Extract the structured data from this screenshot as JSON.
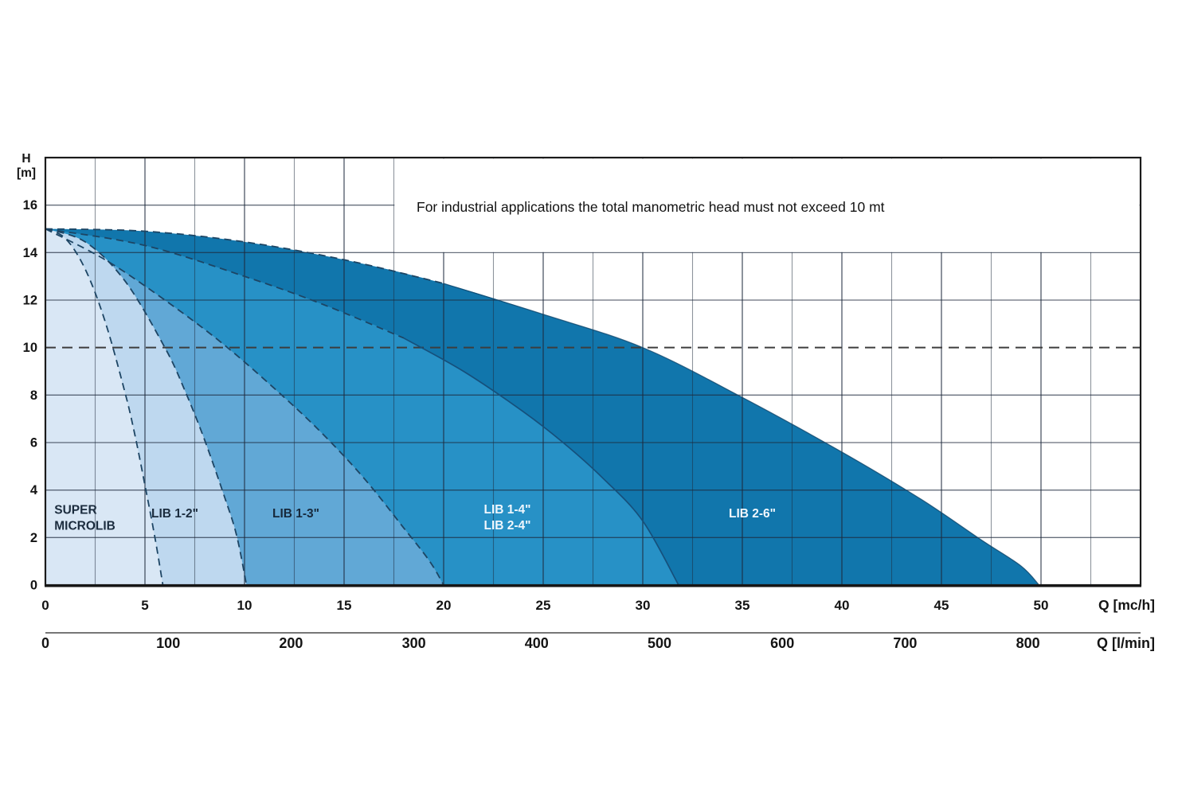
{
  "chart_data": {
    "type": "area",
    "title": "",
    "note": "For industrial applications the total manometric head must not exceed 10 mt",
    "y_axis": {
      "label_lines": [
        "H",
        "[m]"
      ],
      "ticks": [
        16,
        14,
        12,
        10,
        8,
        6,
        4,
        2,
        0
      ],
      "min": 0,
      "max": 18,
      "grid_step": 2
    },
    "x_axis": {
      "label": "Q [mc/h]",
      "ticks": [
        0,
        5,
        10,
        15,
        20,
        25,
        30,
        35,
        40,
        45,
        50
      ],
      "min": 0,
      "max": 55,
      "grid_step": 2.5
    },
    "x_axis_secondary": {
      "label": "Q [l/min]",
      "ticks": [
        0,
        100,
        200,
        300,
        400,
        500,
        600,
        700,
        800
      ]
    },
    "limit_line": {
      "h": 10,
      "style": "dashed"
    },
    "series": [
      {
        "name": "SUPER MICROLIB",
        "label_lines": [
          "SUPER",
          "MICROLIB"
        ],
        "fill": "#d9e7f5",
        "label_color": "#1b2c3e",
        "label_anchor": "start",
        "label_q": 0.45,
        "label_h": 3.0,
        "h_at_q0": 15,
        "q_max": 5.9,
        "points": [
          [
            0,
            15
          ],
          [
            1,
            14.6
          ],
          [
            2,
            13.3
          ],
          [
            3,
            11.1
          ],
          [
            4,
            8.1
          ],
          [
            4.5,
            6.3
          ],
          [
            5,
            4.2
          ],
          [
            5.5,
            2.0
          ],
          [
            5.9,
            0
          ]
        ]
      },
      {
        "name": "LIB 1-2\"",
        "label_lines": [
          "LIB 1-2\""
        ],
        "fill": "#bed8ef",
        "label_color": "#1b2c3e",
        "label_anchor": "start",
        "label_q": 5.32,
        "label_h": 2.85,
        "h_at_q0": 15,
        "q_max": 10.1,
        "points": [
          [
            0,
            15
          ],
          [
            2,
            14.45
          ],
          [
            4,
            12.8
          ],
          [
            6,
            10.0
          ],
          [
            7,
            8.2
          ],
          [
            8,
            6.1
          ],
          [
            9,
            3.7
          ],
          [
            9.6,
            2.1
          ],
          [
            10.1,
            0
          ]
        ]
      },
      {
        "name": "LIB 1-3\"",
        "label_lines": [
          "LIB 1-3\""
        ],
        "fill": "#61a8d6",
        "label_color": "#17293c",
        "label_anchor": "start",
        "label_q": 11.4,
        "label_h": 2.85,
        "h_at_q0": 15,
        "q_max": 20,
        "points": [
          [
            0,
            15
          ],
          [
            3,
            13.7
          ],
          [
            6,
            12.0
          ],
          [
            9,
            10.1
          ],
          [
            12,
            7.9
          ],
          [
            14,
            6.3
          ],
          [
            16,
            4.5
          ],
          [
            18,
            2.4
          ],
          [
            19.3,
            1.0
          ],
          [
            20,
            0
          ]
        ]
      },
      {
        "name": "LIB 1-4\" / LIB 2-4\"",
        "label_lines": [
          "LIB 1-4\"",
          "LIB 2-4\""
        ],
        "fill": "#2791c6",
        "label_color": "#f0f7fd",
        "label_anchor": "middle",
        "label_q": 23.2,
        "label_h": 3.02,
        "h_at_q0": 15,
        "q_max": 31.8,
        "points": [
          [
            0,
            15
          ],
          [
            5,
            14.3
          ],
          [
            10,
            13.0
          ],
          [
            14,
            11.8
          ],
          [
            18,
            10.4
          ],
          [
            21,
            9.0
          ],
          [
            24,
            7.3
          ],
          [
            26,
            6.0
          ],
          [
            28,
            4.5
          ],
          [
            30,
            2.7
          ],
          [
            31.8,
            0
          ]
        ]
      },
      {
        "name": "LIB 2-6\"",
        "label_lines": [
          "LIB 2-6\""
        ],
        "fill": "#1176ac",
        "label_color": "#f0f7fd",
        "label_anchor": "middle",
        "label_q": 35.5,
        "label_h": 2.85,
        "h_at_q0": 15,
        "q_max": 49.9,
        "points": [
          [
            0,
            15
          ],
          [
            5,
            14.9
          ],
          [
            10,
            14.45
          ],
          [
            15,
            13.7
          ],
          [
            20,
            12.7
          ],
          [
            25,
            11.4
          ],
          [
            30,
            10.0
          ],
          [
            35,
            7.9
          ],
          [
            40,
            5.6
          ],
          [
            44,
            3.6
          ],
          [
            47,
            1.9
          ],
          [
            49,
            0.8
          ],
          [
            49.9,
            0
          ]
        ]
      }
    ],
    "colors": {
      "grid": "rgba(30,42,60,0.5)",
      "grid_major": "rgba(30,42,60,0.68)",
      "border": "#1b1b1b",
      "curve_dash": "#1d4564",
      "curve_solid": "#15507c",
      "limit_line": "#3d3d3d",
      "note_bg": "#ffffff",
      "axis_text": "#141414",
      "secondary_axis_line": "#4a4a4a"
    }
  }
}
